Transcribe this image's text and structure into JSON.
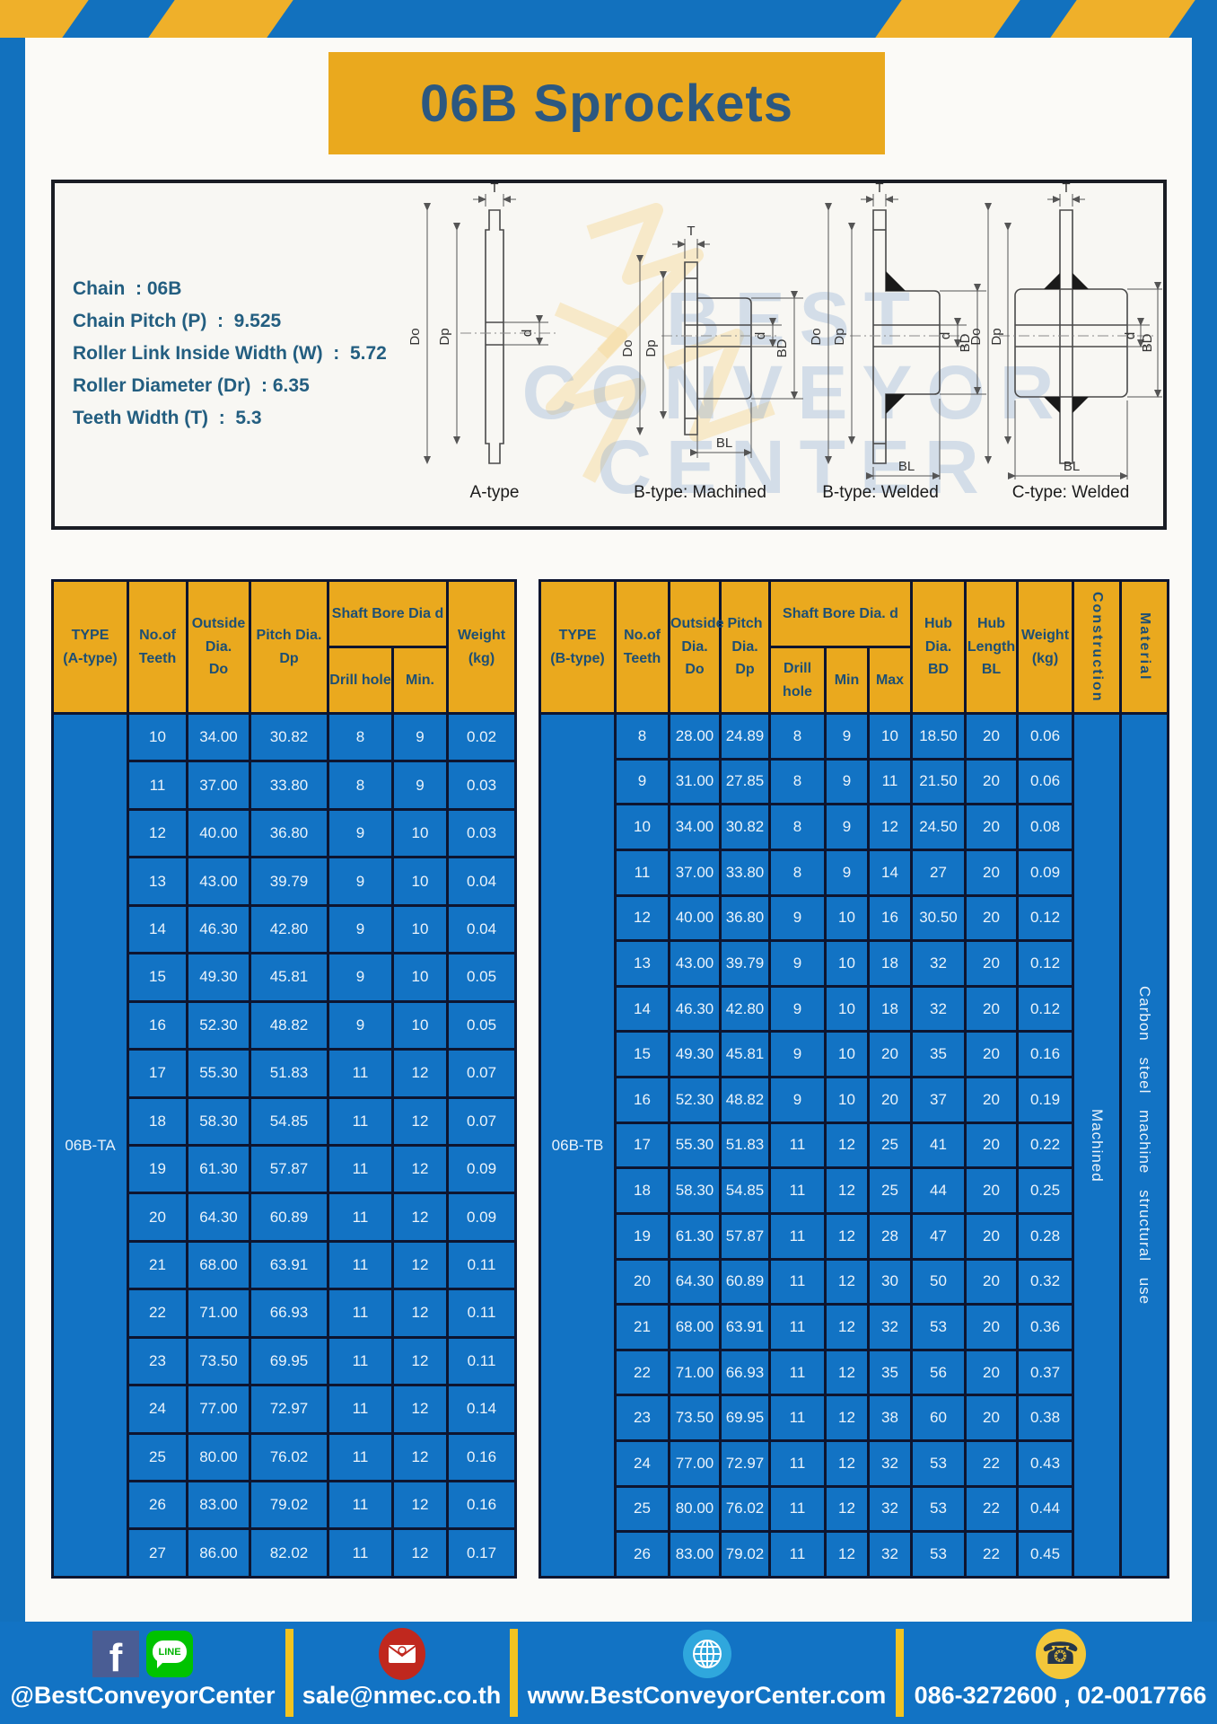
{
  "page": {
    "title": "06B Sprockets"
  },
  "specs": {
    "lines": [
      "Chain  : 06B",
      "Chain Pitch (P)  :  9.525",
      "Roller Link Inside Width (W)  :  5.72",
      "Roller Diameter (Dr)  : 6.35",
      "Teeth Width (T)  :  5.3"
    ]
  },
  "diagram": {
    "labels": [
      "A-type",
      "B-type: Machined",
      "B-type: Welded",
      "C-type: Welded"
    ],
    "dims": {
      "t": "T",
      "do": "Do",
      "dp": "Dp",
      "d": "d",
      "bd": "BD",
      "bl": "BL"
    },
    "watermark": [
      "BEST",
      "CONVEYOR",
      "CENTER"
    ]
  },
  "table_a": {
    "headers": {
      "type": "TYPE\n(A-type)",
      "teeth": "No.of\nTeeth",
      "outside": "Outside\nDia.\nDo",
      "pitch": "Pitch Dia.\nDp",
      "shaft": "Shaft Bore Dia d",
      "drill": "Drill hole",
      "min": "Min.",
      "weight": "Weight\n(kg)"
    },
    "type_label": "06B-TA",
    "rows": [
      [
        "10",
        "34.00",
        "30.82",
        "8",
        "9",
        "0.02"
      ],
      [
        "11",
        "37.00",
        "33.80",
        "8",
        "9",
        "0.03"
      ],
      [
        "12",
        "40.00",
        "36.80",
        "9",
        "10",
        "0.03"
      ],
      [
        "13",
        "43.00",
        "39.79",
        "9",
        "10",
        "0.04"
      ],
      [
        "14",
        "46.30",
        "42.80",
        "9",
        "10",
        "0.04"
      ],
      [
        "15",
        "49.30",
        "45.81",
        "9",
        "10",
        "0.05"
      ],
      [
        "16",
        "52.30",
        "48.82",
        "9",
        "10",
        "0.05"
      ],
      [
        "17",
        "55.30",
        "51.83",
        "11",
        "12",
        "0.07"
      ],
      [
        "18",
        "58.30",
        "54.85",
        "11",
        "12",
        "0.07"
      ],
      [
        "19",
        "61.30",
        "57.87",
        "11",
        "12",
        "0.09"
      ],
      [
        "20",
        "64.30",
        "60.89",
        "11",
        "12",
        "0.09"
      ],
      [
        "21",
        "68.00",
        "63.91",
        "11",
        "12",
        "0.11"
      ],
      [
        "22",
        "71.00",
        "66.93",
        "11",
        "12",
        "0.11"
      ],
      [
        "23",
        "73.50",
        "69.95",
        "11",
        "12",
        "0.11"
      ],
      [
        "24",
        "77.00",
        "72.97",
        "11",
        "12",
        "0.14"
      ],
      [
        "25",
        "80.00",
        "76.02",
        "11",
        "12",
        "0.16"
      ],
      [
        "26",
        "83.00",
        "79.02",
        "11",
        "12",
        "0.16"
      ],
      [
        "27",
        "86.00",
        "82.02",
        "11",
        "12",
        "0.17"
      ]
    ]
  },
  "table_b": {
    "headers": {
      "type": "TYPE\n(B-type)",
      "teeth": "No.of\nTeeth",
      "outside": "Outside\nDia.\nDo",
      "pitch": "Pitch\nDia.\nDp",
      "shaft": "Shaft Bore Dia. d",
      "drill": "Drill hole",
      "min": "Min",
      "max": "Max",
      "hub_dia": "Hub\nDia.\nBD",
      "hub_len": "Hub\nLength\nBL",
      "weight": "Weight\n(kg)",
      "construction": "Construction",
      "material": "Material"
    },
    "type_label": "06B-TB",
    "construction_value": "Machined",
    "material_value": "Carbon steel machine structural use",
    "rows": [
      [
        "8",
        "28.00",
        "24.89",
        "8",
        "9",
        "10",
        "18.50",
        "20",
        "0.06"
      ],
      [
        "9",
        "31.00",
        "27.85",
        "8",
        "9",
        "11",
        "21.50",
        "20",
        "0.06"
      ],
      [
        "10",
        "34.00",
        "30.82",
        "8",
        "9",
        "12",
        "24.50",
        "20",
        "0.08"
      ],
      [
        "11",
        "37.00",
        "33.80",
        "8",
        "9",
        "14",
        "27",
        "20",
        "0.09"
      ],
      [
        "12",
        "40.00",
        "36.80",
        "9",
        "10",
        "16",
        "30.50",
        "20",
        "0.12"
      ],
      [
        "13",
        "43.00",
        "39.79",
        "9",
        "10",
        "18",
        "32",
        "20",
        "0.12"
      ],
      [
        "14",
        "46.30",
        "42.80",
        "9",
        "10",
        "18",
        "32",
        "20",
        "0.12"
      ],
      [
        "15",
        "49.30",
        "45.81",
        "9",
        "10",
        "20",
        "35",
        "20",
        "0.16"
      ],
      [
        "16",
        "52.30",
        "48.82",
        "9",
        "10",
        "20",
        "37",
        "20",
        "0.19"
      ],
      [
        "17",
        "55.30",
        "51.83",
        "11",
        "12",
        "25",
        "41",
        "20",
        "0.22"
      ],
      [
        "18",
        "58.30",
        "54.85",
        "11",
        "12",
        "25",
        "44",
        "20",
        "0.25"
      ],
      [
        "19",
        "61.30",
        "57.87",
        "11",
        "12",
        "28",
        "47",
        "20",
        "0.28"
      ],
      [
        "20",
        "64.30",
        "60.89",
        "11",
        "12",
        "30",
        "50",
        "20",
        "0.32"
      ],
      [
        "21",
        "68.00",
        "63.91",
        "11",
        "12",
        "32",
        "53",
        "20",
        "0.36"
      ],
      [
        "22",
        "71.00",
        "66.93",
        "11",
        "12",
        "35",
        "56",
        "20",
        "0.37"
      ],
      [
        "23",
        "73.50",
        "69.95",
        "11",
        "12",
        "38",
        "60",
        "20",
        "0.38"
      ],
      [
        "24",
        "77.00",
        "72.97",
        "11",
        "12",
        "32",
        "53",
        "22",
        "0.43"
      ],
      [
        "25",
        "80.00",
        "76.02",
        "11",
        "12",
        "32",
        "53",
        "22",
        "0.44"
      ],
      [
        "26",
        "83.00",
        "79.02",
        "11",
        "12",
        "32",
        "53",
        "22",
        "0.45"
      ]
    ]
  },
  "footer": {
    "social_label": "@BestConveyorCenter",
    "email": "sale@nmec.co.th",
    "website": "www.BestConveyorCenter.com",
    "phones": "086-3272600 , 02-0017766",
    "facebook_letter": "f",
    "line_text": "LINE",
    "phone_glyph": "☎"
  },
  "colors": {
    "frame_blue": "#1271BE",
    "table_blue": "#1273C4",
    "header_gold": "#EAA91E",
    "stripe_gold": "#EFB02A",
    "divider_yellow": "#F2C31F",
    "dark_text": "#235E80",
    "border_navy": "#0D1530"
  }
}
